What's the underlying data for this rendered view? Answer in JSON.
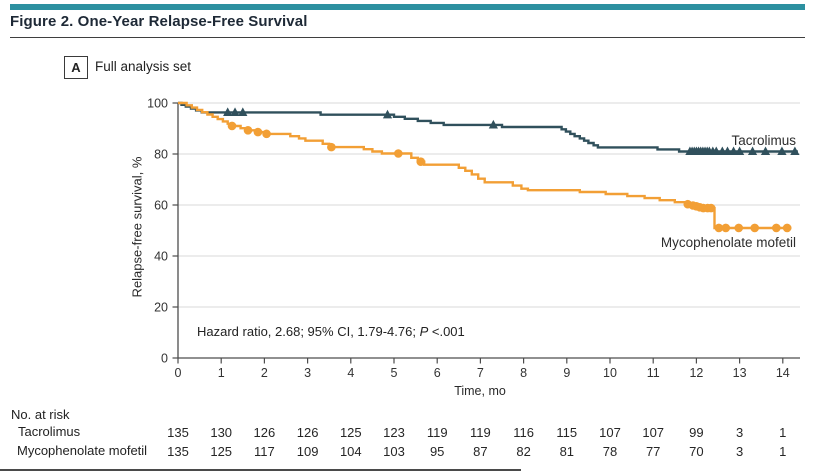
{
  "header": {
    "title": "Figure 2. One-Year Relapse-Free Survival"
  },
  "panel": {
    "label": "A",
    "title": "Full analysis set"
  },
  "annotation": {
    "prefix": "Hazard ratio, 2.68; 95% CI, 1.79-4.76; ",
    "p_label": "P",
    "suffix": " <.001"
  },
  "colors": {
    "accent_bar": "#2C90A0",
    "tacrolimus": "#30505C",
    "mycophenolate": "#F29F35",
    "grid": "#D9D9D9",
    "axis": "#4D4D4D",
    "tick_text": "#333333",
    "risk_text": "#262626"
  },
  "chart_data": {
    "type": "line",
    "subtype": "kaplan-meier-step",
    "title": "One-Year Relapse-Free Survival (Full analysis set)",
    "xlabel": "Time, mo",
    "ylabel": "Relapse-free survival, %",
    "xlim": [
      0,
      14.5
    ],
    "ylim": [
      0,
      100
    ],
    "xticks": [
      0,
      1,
      2,
      3,
      4,
      5,
      6,
      7,
      8,
      9,
      10,
      11,
      12,
      13,
      14
    ],
    "yticks": [
      0,
      20,
      40,
      60,
      80,
      100
    ],
    "grid": "horizontal",
    "legend_position": "on-curve-labels",
    "series": [
      {
        "id": "tacrolimus",
        "name": "Tacrolimus",
        "color": "#30505C",
        "marker": "triangle",
        "start": 100,
        "end": 14.35,
        "final_value": 81,
        "steps": [
          [
            0.08,
            99.3
          ],
          [
            0.18,
            98.6
          ],
          [
            0.3,
            97.8
          ],
          [
            0.42,
            97.1
          ],
          [
            0.55,
            96.3
          ],
          [
            3.3,
            95.4
          ],
          [
            5.0,
            94.6
          ],
          [
            5.25,
            93.8
          ],
          [
            5.55,
            93.0
          ],
          [
            5.85,
            92.2
          ],
          [
            6.15,
            91.4
          ],
          [
            7.5,
            90.6
          ],
          [
            8.88,
            89.7
          ],
          [
            8.98,
            88.8
          ],
          [
            9.08,
            87.9
          ],
          [
            9.18,
            87.0
          ],
          [
            9.3,
            86.1
          ],
          [
            9.4,
            85.2
          ],
          [
            9.5,
            84.3
          ],
          [
            9.62,
            83.4
          ],
          [
            9.72,
            82.6
          ],
          [
            11.1,
            81.8
          ],
          [
            11.6,
            81.0
          ]
        ],
        "censors": [
          [
            1.15,
            96.3
          ],
          [
            1.32,
            96.3
          ],
          [
            1.5,
            96.3
          ],
          [
            4.85,
            95.4
          ],
          [
            7.3,
            91.4
          ],
          [
            11.85,
            81.0
          ],
          [
            11.9,
            81.0
          ],
          [
            11.95,
            81.0
          ],
          [
            12.0,
            81.0
          ],
          [
            12.05,
            81.0
          ],
          [
            12.1,
            81.0
          ],
          [
            12.15,
            81.0
          ],
          [
            12.2,
            81.0
          ],
          [
            12.25,
            81.0
          ],
          [
            12.3,
            81.0
          ],
          [
            12.38,
            81.0
          ],
          [
            12.46,
            81.0
          ],
          [
            12.6,
            81.0
          ],
          [
            12.72,
            81.0
          ],
          [
            12.86,
            81.0
          ],
          [
            13.0,
            81.0
          ],
          [
            13.3,
            81.0
          ],
          [
            13.6,
            81.0
          ],
          [
            13.98,
            81.0
          ],
          [
            14.28,
            81.0
          ]
        ]
      },
      {
        "id": "mycophenolate",
        "name": "Mycophenolate mofetil",
        "color": "#F29F35",
        "marker": "circle",
        "start": 100,
        "end": 14.2,
        "final_value": 51,
        "steps": [
          [
            0.2,
            99.1
          ],
          [
            0.32,
            98.2
          ],
          [
            0.44,
            97.3
          ],
          [
            0.56,
            96.4
          ],
          [
            0.68,
            95.5
          ],
          [
            0.8,
            94.6
          ],
          [
            0.92,
            93.7
          ],
          [
            1.04,
            92.8
          ],
          [
            1.15,
            91.9
          ],
          [
            1.25,
            91.0
          ],
          [
            1.45,
            90.1
          ],
          [
            1.6,
            89.3
          ],
          [
            1.82,
            88.6
          ],
          [
            2.02,
            87.9
          ],
          [
            2.6,
            87.0
          ],
          [
            2.8,
            86.1
          ],
          [
            2.95,
            85.2
          ],
          [
            3.35,
            84.0
          ],
          [
            3.5,
            82.7
          ],
          [
            4.3,
            81.9
          ],
          [
            4.5,
            81.0
          ],
          [
            4.72,
            80.2
          ],
          [
            5.4,
            78.5
          ],
          [
            5.55,
            77.0
          ],
          [
            5.7,
            75.8
          ],
          [
            6.5,
            74.6
          ],
          [
            6.65,
            73.4
          ],
          [
            6.8,
            72.0
          ],
          [
            6.95,
            70.3
          ],
          [
            7.1,
            68.9
          ],
          [
            7.75,
            67.6
          ],
          [
            7.95,
            66.4
          ],
          [
            8.1,
            65.8
          ],
          [
            9.3,
            65.1
          ],
          [
            9.9,
            64.3
          ],
          [
            10.4,
            63.5
          ],
          [
            10.8,
            62.7
          ],
          [
            11.15,
            61.9
          ],
          [
            11.5,
            61.1
          ],
          [
            11.75,
            60.3
          ],
          [
            11.92,
            59.7
          ],
          [
            12.04,
            59.3
          ],
          [
            12.16,
            58.8
          ],
          [
            12.42,
            51.0
          ]
        ],
        "censors": [
          [
            1.25,
            91.0
          ],
          [
            1.62,
            89.3
          ],
          [
            1.85,
            88.6
          ],
          [
            2.05,
            87.9
          ],
          [
            3.55,
            82.7
          ],
          [
            5.1,
            80.2
          ],
          [
            5.62,
            77.0
          ],
          [
            11.8,
            60.3
          ],
          [
            11.92,
            59.8
          ],
          [
            12.0,
            59.5
          ],
          [
            12.08,
            59.1
          ],
          [
            12.16,
            58.8
          ],
          [
            12.26,
            58.8
          ],
          [
            12.34,
            58.8
          ],
          [
            12.52,
            51.0
          ],
          [
            12.68,
            51.0
          ],
          [
            12.98,
            51.0
          ],
          [
            13.35,
            51.0
          ],
          [
            13.85,
            51.0
          ],
          [
            14.1,
            51.0
          ]
        ]
      }
    ]
  },
  "risk_table": {
    "title": "No. at risk",
    "times": [
      0,
      1,
      2,
      3,
      4,
      5,
      6,
      7,
      8,
      9,
      10,
      11,
      12,
      13,
      14
    ],
    "rows": [
      {
        "label": "Tacrolimus",
        "values": [
          135,
          130,
          126,
          126,
          125,
          123,
          119,
          119,
          116,
          115,
          107,
          107,
          99,
          3,
          1
        ]
      },
      {
        "label": "Mycophenolate mofetil",
        "values": [
          135,
          125,
          117,
          109,
          104,
          103,
          95,
          87,
          82,
          81,
          78,
          77,
          70,
          3,
          1
        ]
      }
    ]
  }
}
